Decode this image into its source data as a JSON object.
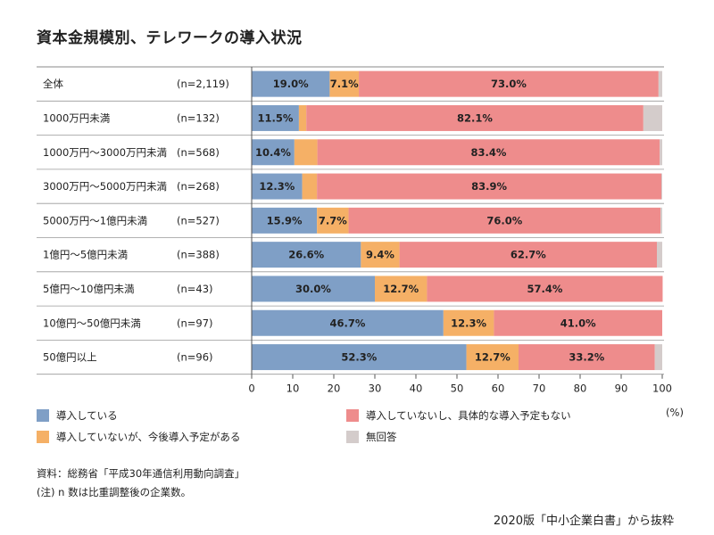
{
  "title": "資本金規模別、テレワークの導入状況",
  "chart_data": {
    "type": "bar",
    "orientation": "horizontal",
    "stacked": true,
    "categories": [
      "全体",
      "1000万円未満",
      "1000万円〜3000万円未満",
      "3000万円〜5000万円未満",
      "5000万円〜1億円未満",
      "1億円〜5億円未満",
      "5億円〜10億円未満",
      "10億円〜50億円未満",
      "50億円以上"
    ],
    "n_labels": [
      "(n=2,119)",
      "(n=132)",
      "(n=568)",
      "(n=268)",
      "(n=527)",
      "(n=388)",
      "(n=43)",
      "(n=97)",
      "(n=96)"
    ],
    "series": [
      {
        "name": "導入している",
        "color": "#7f9fc6",
        "values": [
          19.0,
          11.5,
          10.4,
          12.3,
          15.9,
          26.6,
          30.0,
          46.7,
          52.3
        ],
        "labels": [
          "19.0%",
          "11.5%",
          "10.4%",
          "12.3%",
          "15.9%",
          "26.6%",
          "30.0%",
          "46.7%",
          "52.3%"
        ]
      },
      {
        "name": "導入していないが、今後導入予定がある",
        "color": "#f5b066",
        "values": [
          7.1,
          1.8,
          5.6,
          3.6,
          7.7,
          9.4,
          12.7,
          12.3,
          12.7
        ],
        "labels": [
          "7.1%",
          "",
          "",
          "",
          "7.7%",
          "9.4%",
          "12.7%",
          "12.3%",
          "12.7%"
        ]
      },
      {
        "name": "導入していないし、具体的な導入予定もない",
        "color": "#ee8c8c",
        "values": [
          73.0,
          82.1,
          83.4,
          83.9,
          76.0,
          62.7,
          57.4,
          41.0,
          33.2
        ],
        "labels": [
          "73.0%",
          "82.1%",
          "83.4%",
          "83.9%",
          "76.0%",
          "62.7%",
          "57.4%",
          "41.0%",
          "33.2%"
        ]
      },
      {
        "name": "無回答",
        "color": "#d4cccb",
        "values": [
          0.9,
          4.6,
          0.6,
          0.2,
          0.4,
          1.3,
          0.0,
          0.0,
          1.8
        ],
        "labels": [
          "",
          "",
          "",
          "",
          "",
          "",
          "",
          "",
          ""
        ]
      }
    ],
    "xlim": [
      0,
      100
    ],
    "xticks": [
      "0",
      "10",
      "20",
      "30",
      "40",
      "50",
      "60",
      "70",
      "80",
      "90",
      "100"
    ],
    "xunit": "(%)"
  },
  "notes": [
    "資料：総務省「平成30年通信利用動向調査」",
    "(注) n 数は比重調整後の企業数。"
  ],
  "credit": "2020版「中小企業白書」から抜粋"
}
